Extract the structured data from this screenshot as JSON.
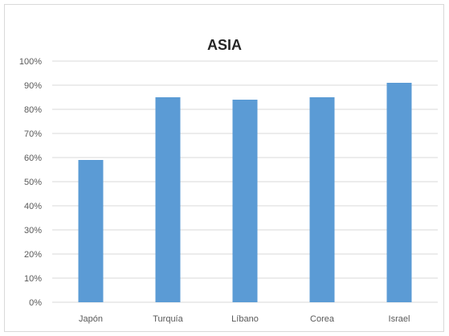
{
  "chart_data": {
    "type": "bar",
    "title": "ASIA",
    "categories": [
      "Japón",
      "Turquía",
      "Líbano",
      "Corea",
      "Israel"
    ],
    "series": [
      {
        "values": [
          59,
          85,
          84,
          85,
          91
        ],
        "color": "#5b9bd5"
      }
    ],
    "ylim": [
      0,
      100
    ],
    "yticks": [
      "0%",
      "10%",
      "20%",
      "30%",
      "40%",
      "50%",
      "60%",
      "70%",
      "80%",
      "90%",
      "100%"
    ],
    "grid": true,
    "legend": "none"
  }
}
